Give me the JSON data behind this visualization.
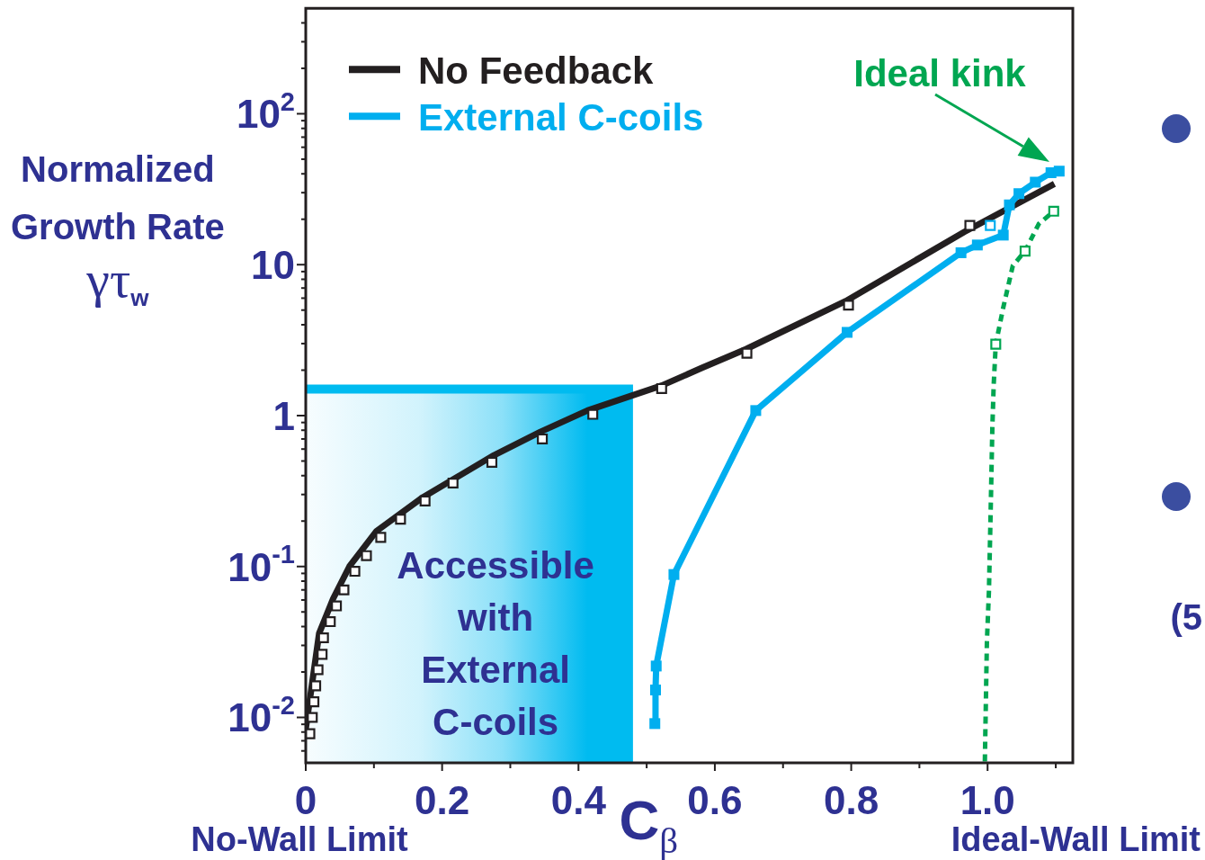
{
  "chart_data": {
    "type": "line",
    "xlabel": "C$_{β}$",
    "ylabel": "Normalized Growth Rate γτ$_{w}$",
    "log": "y",
    "legend": "top left",
    "xlim": [
      0,
      1.125
    ],
    "ylim": [
      0.005,
      500
    ],
    "xticks": [
      0,
      {
        "value": 0.1,
        "label": null
      },
      0.2,
      {
        "value": 0.3,
        "label": null
      },
      0.4,
      {
        "value": 0.5,
        "label": null
      },
      0.6,
      {
        "value": 0.7,
        "label": null
      },
      0.8,
      {
        "value": 0.9,
        "label": null
      },
      {
        "value": 1,
        "label": "1.0"
      },
      {
        "value": 1.1,
        "label": null
      }
    ],
    "yticks": [
      {
        "value": 0.006,
        "label": null
      },
      {
        "value": 0.007,
        "label": null
      },
      {
        "value": 0.008,
        "label": null
      },
      {
        "value": 0.009,
        "label": null
      },
      {
        "value": 0.01,
        "label": "10$^{-2}$"
      },
      {
        "value": 0.02,
        "label": null
      },
      {
        "value": 0.03,
        "label": null
      },
      {
        "value": 0.04,
        "label": null
      },
      {
        "value": 0.05,
        "label": null
      },
      {
        "value": 0.06,
        "label": null
      },
      {
        "value": 0.07,
        "label": null
      },
      {
        "value": 0.08,
        "label": null
      },
      {
        "value": 0.09,
        "label": null
      },
      {
        "value": 0.1,
        "label": "10$^{-1}$"
      },
      {
        "value": 0.2,
        "label": null
      },
      {
        "value": 0.3,
        "label": null
      },
      {
        "value": 0.4,
        "label": null
      },
      {
        "value": 0.5,
        "label": null
      },
      {
        "value": 0.6,
        "label": null
      },
      {
        "value": 0.7,
        "label": null
      },
      {
        "value": 0.8,
        "label": null
      },
      {
        "value": 0.9,
        "label": null
      },
      1,
      {
        "value": 2,
        "label": null
      },
      {
        "value": 3,
        "label": null
      },
      {
        "value": 4,
        "label": null
      },
      {
        "value": 5,
        "label": null
      },
      {
        "value": 6,
        "label": null
      },
      {
        "value": 7,
        "label": null
      },
      {
        "value": 8,
        "label": null
      },
      {
        "value": 9,
        "label": null
      },
      10,
      {
        "value": 20,
        "label": null
      },
      {
        "value": 30,
        "label": null
      },
      {
        "value": 40,
        "label": null
      },
      {
        "value": 50,
        "label": null
      },
      {
        "value": 60,
        "label": null
      },
      {
        "value": 70,
        "label": null
      },
      {
        "value": 80,
        "label": null
      },
      {
        "value": 90,
        "label": null
      },
      {
        "value": 100,
        "label": "10$^{2}$"
      },
      {
        "value": 200,
        "label": null
      },
      {
        "value": 300,
        "label": null
      },
      {
        "value": 400,
        "label": null
      }
    ],
    "series": [
      {
        "type": "area",
        "name": "Accessible with External C-coils",
        "color": "#00bbf0",
        "x": [
          0,
          0.48
        ],
        "values": [
          1.5,
          1.5
        ]
      },
      {
        "color": "#00a651",
        "line_style": "dotted",
        "marker": "none",
        "x": [
          0.996,
          0.999,
          1.002,
          1.005,
          1.007,
          1.009,
          1.012,
          1.023,
          1.037,
          1.055,
          1.075,
          1.097
        ],
        "values": [
          0.0051,
          0.0315,
          0.069,
          0.295,
          0.83,
          1.61,
          2.97,
          5.2,
          9.85,
          12.3,
          18.6,
          22.6
        ]
      },
      {
        "type": "scatter",
        "color": "#00a651",
        "marker": "square",
        "x": [
          1.012,
          1.055,
          1.097
        ],
        "values": [
          2.97,
          12.3,
          22.6
        ]
      },
      {
        "name": "No Feedback",
        "color": "#231f20",
        "marker": "none",
        "x": [
          0,
          0.0196,
          0.04,
          0.064,
          0.104,
          0.172,
          0.276,
          0.344,
          0.413,
          0.522,
          0.58,
          0.646,
          0.792,
          0.966,
          1.098
        ],
        "values": [
          0.0084,
          0.036,
          0.061,
          0.1,
          0.172,
          0.288,
          0.546,
          0.78,
          1.08,
          1.58,
          2.06,
          2.76,
          5.74,
          16.5,
          34.3
        ]
      },
      {
        "type": "scatter",
        "color": "#231f20",
        "marker": "square",
        "x": [
          0.006,
          0.0096,
          0.012,
          0.0146,
          0.018,
          0.024,
          0.026,
          0.036,
          0.045,
          0.056,
          0.072,
          0.089,
          0.11,
          0.139,
          0.175,
          0.216,
          0.273,
          0.347,
          0.421,
          0.522,
          0.647,
          0.796,
          0.974
        ],
        "values": [
          0.0078,
          0.01,
          0.0127,
          0.0162,
          0.0207,
          0.0262,
          0.0337,
          0.0431,
          0.0548,
          0.07,
          0.093,
          0.118,
          0.156,
          0.206,
          0.272,
          0.357,
          0.49,
          0.7,
          1.02,
          1.51,
          2.59,
          5.39,
          18.2
        ]
      },
      {
        "name": "External C-coils",
        "color": "#00aeef",
        "marker": "square",
        "x": [
          0.512,
          0.513,
          0.514,
          0.54,
          0.66,
          0.794,
          0.961,
          0.985,
          1.023,
          1.032,
          1.046,
          1.07,
          1.093,
          1.105
        ],
        "values": [
          0.0091,
          0.0152,
          0.0219,
          0.0885,
          1.08,
          3.56,
          12.0,
          13.5,
          15.7,
          24.9,
          29.6,
          35.2,
          40.7,
          41.7
        ]
      },
      {
        "type": "scatter",
        "color": "#00aeef",
        "marker": "square",
        "x": [
          1.004
        ],
        "values": [
          18.2
        ]
      }
    ],
    "annotations": [
      "Ideal kink",
      "No-Wall Limit",
      "Ideal-Wall Limit",
      "(5"
    ]
  }
}
